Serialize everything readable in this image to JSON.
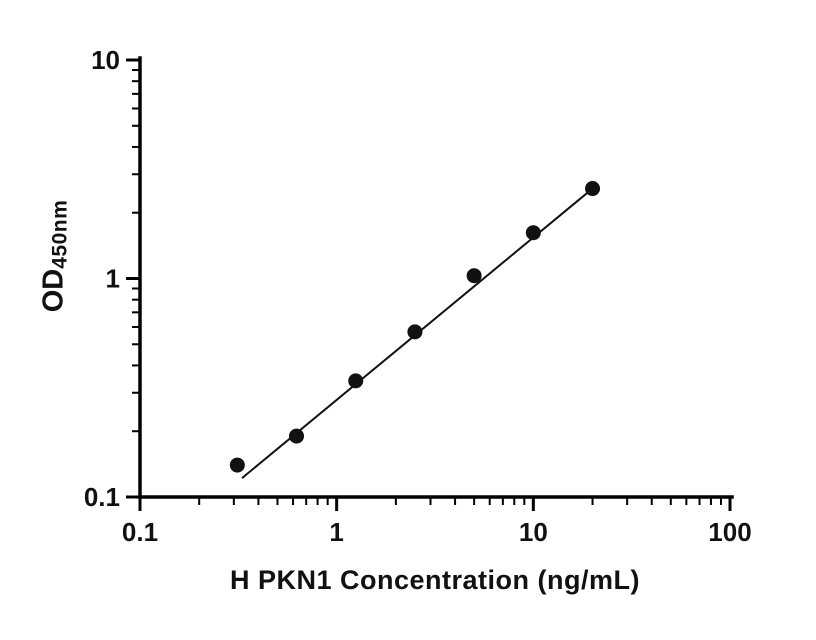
{
  "chart_data": {
    "type": "scatter",
    "title": "",
    "xlabel": "H PKN1 Concentration (ng/mL)",
    "ylabel_main": "OD",
    "ylabel_sub": "450nm",
    "x_scale": "log",
    "y_scale": "log",
    "xlim": [
      0.1,
      100
    ],
    "ylim": [
      0.1,
      10
    ],
    "x_ticks": [
      {
        "value": 0.1,
        "label": "0.1"
      },
      {
        "value": 1,
        "label": "1"
      },
      {
        "value": 10,
        "label": "10"
      },
      {
        "value": 100,
        "label": "100"
      }
    ],
    "y_ticks": [
      {
        "value": 0.1,
        "label": "0.1"
      },
      {
        "value": 1,
        "label": "1"
      },
      {
        "value": 10,
        "label": "10"
      }
    ],
    "grid": false,
    "legend": "none",
    "points": [
      {
        "x": 0.3125,
        "y": 0.14
      },
      {
        "x": 0.625,
        "y": 0.19
      },
      {
        "x": 1.25,
        "y": 0.34
      },
      {
        "x": 2.5,
        "y": 0.57
      },
      {
        "x": 5,
        "y": 1.03
      },
      {
        "x": 10,
        "y": 1.62
      },
      {
        "x": 20,
        "y": 2.58
      }
    ],
    "trendline": {
      "x1": 0.33,
      "y1": 0.122,
      "x2": 20,
      "y2": 2.58
    },
    "marker_color": "#111111",
    "line_color": "#111111",
    "axis_color": "#000000"
  }
}
